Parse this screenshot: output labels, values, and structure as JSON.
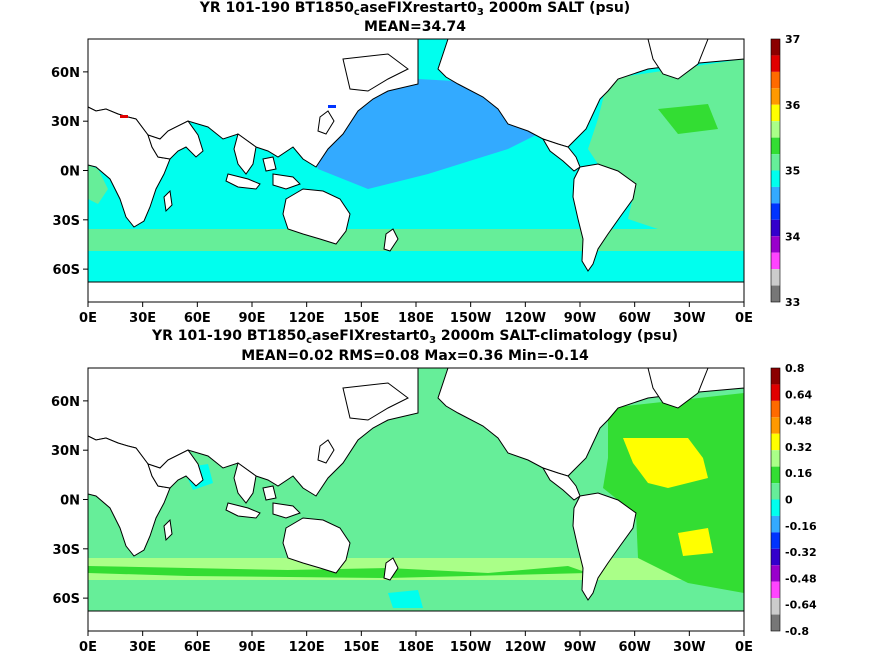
{
  "panel_top": {
    "title_pre": "YR 101-190 BT1850",
    "title_sub1": "c",
    "title_mid": "aseFIXrestart0",
    "title_sub2": "3",
    "title_post": " 2000m SALT (psu)",
    "stats": "MEAN=34.74",
    "colorbar_labels": [
      "37",
      "36",
      "35",
      "34",
      "33"
    ],
    "colorbar_colors": [
      "#8b0000",
      "#e00000",
      "#ff6a00",
      "#ff9900",
      "#ffff00",
      "#aaff88",
      "#33dd33",
      "#66ee99",
      "#00ffee",
      "#33aaff",
      "#0033ff",
      "#3300cc",
      "#9900cc",
      "#ff44ff",
      "#cccccc",
      "#777777"
    ]
  },
  "panel_bottom": {
    "title_pre": "YR 101-190 BT1850",
    "title_sub1": "c",
    "title_mid": "aseFIXrestart0",
    "title_sub2": "3",
    "title_post": " 2000m SALT-climatology (psu)",
    "stats": "MEAN=0.02   RMS=0.08   Max=0.36   Min=-0.14",
    "colorbar_labels": [
      "0.8",
      "0.64",
      "0.48",
      "0.32",
      "0.16",
      "0",
      "-0.16",
      "-0.32",
      "-0.48",
      "-0.64",
      "-0.8"
    ],
    "colorbar_colors": [
      "#8b0000",
      "#e00000",
      "#ff6a00",
      "#ff9900",
      "#ffff00",
      "#aaff88",
      "#33dd33",
      "#66ee99",
      "#00ffee",
      "#33aaff",
      "#0033ff",
      "#3300cc",
      "#9900cc",
      "#ff44ff",
      "#cccccc",
      "#777777"
    ]
  },
  "axes": {
    "lon_labels": [
      "0E",
      "30E",
      "60E",
      "90E",
      "120E",
      "150E",
      "180E",
      "150W",
      "120W",
      "90W",
      "60W",
      "30W",
      "0E"
    ],
    "lat_labels": [
      "60N",
      "30N",
      "0N",
      "30S",
      "60S"
    ]
  },
  "colors": {
    "land": "#ffffff",
    "coast": "#000000",
    "salt_35": "#66ee99",
    "salt_34_7": "#00ffee",
    "salt_34_6": "#33aaff",
    "diff_0": "#66ee99",
    "diff_pos": "#aaff88",
    "diff_hi": "#ffff00",
    "diff_neg": "#00ffee"
  }
}
